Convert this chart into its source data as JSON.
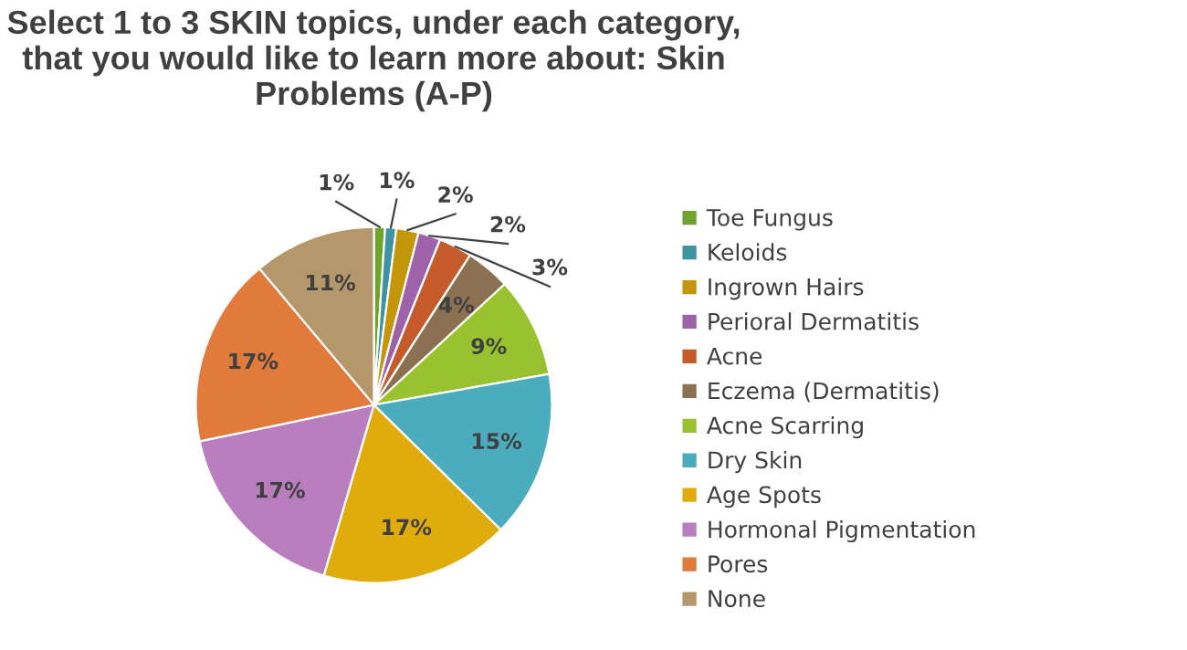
{
  "chart_data": {
    "type": "pie",
    "title": "Select 1 to 3 SKIN topics, under each category, that you would like to learn more about: Skin Problems (A-P)",
    "categories": [
      "Toe Fungus",
      "Keloids",
      "Ingrown Hairs",
      "Perioral Dermatitis",
      "Acne",
      "Eczema (Dermatitis)",
      "Acne Scarring",
      "Dry Skin",
      "Age Spots",
      "Hormonal Pigmentation",
      "Pores",
      "None"
    ],
    "values": [
      1,
      1,
      2,
      2,
      3,
      4,
      9,
      15,
      17,
      17,
      17,
      11
    ],
    "value_labels": [
      "1%",
      "1%",
      "2%",
      "2%",
      "3%",
      "4%",
      "9%",
      "15%",
      "17%",
      "17%",
      "17%",
      "11%"
    ],
    "colors": [
      "#6fa32c",
      "#3d93a0",
      "#c3960a",
      "#9e62a8",
      "#c55a2b",
      "#8b7052",
      "#99c32e",
      "#4aacbc",
      "#e0ac0c",
      "#b87ebe",
      "#e07b3c",
      "#b5976c"
    ],
    "legend": "right"
  }
}
